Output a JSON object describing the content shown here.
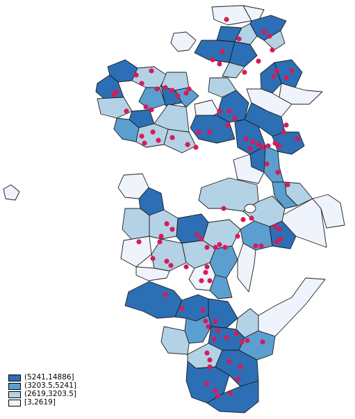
{
  "map": {
    "colors": {
      "c4": "#2c6fb4",
      "c3": "#5b9fd0",
      "c2": "#b4d2e6",
      "c1": "#eff3fb",
      "stroke": "#1c1c1c",
      "point": "#d61b5b"
    }
  },
  "legend": {
    "items": [
      {
        "label": "(5241,14886]",
        "color": "#2c6fb4"
      },
      {
        "label": "(3203.5,5241]",
        "color": "#5b9fd0"
      },
      {
        "label": "(2619,3203.5]",
        "color": "#b4d2e6"
      },
      {
        "label": "[3,2619]",
        "color": "#eff3fb"
      }
    ]
  }
}
